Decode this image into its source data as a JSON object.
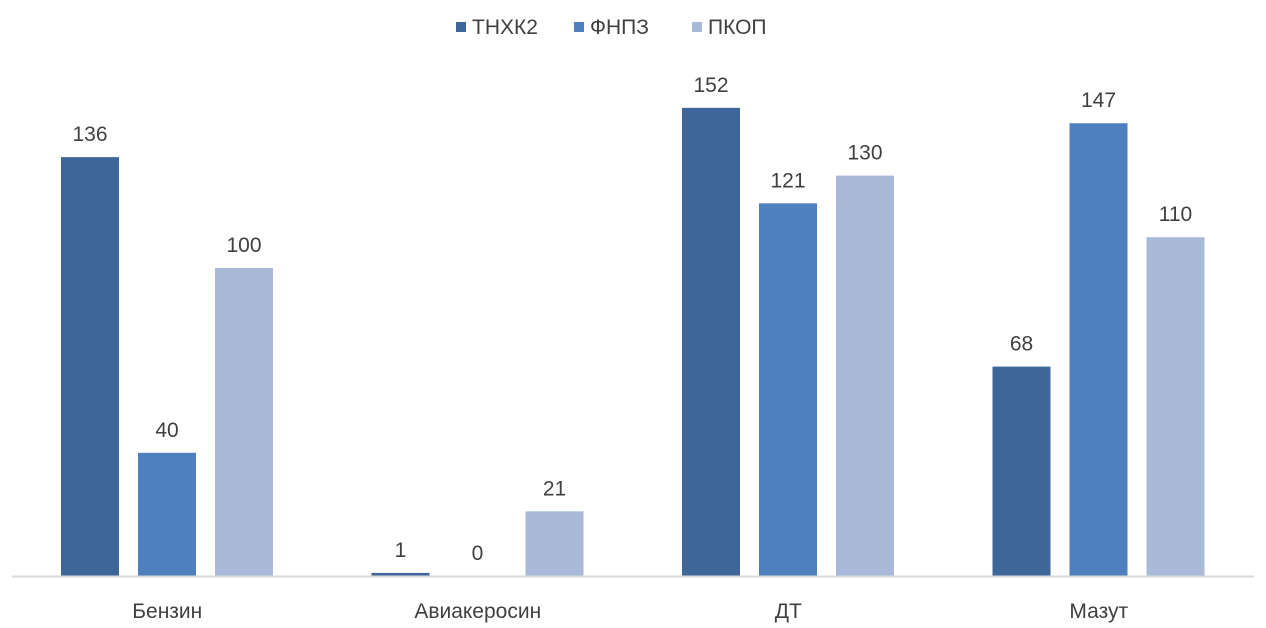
{
  "chart_data": {
    "type": "bar",
    "categories": [
      "Бензин",
      "Авиакеросин",
      "ДТ",
      "Мазут"
    ],
    "series": [
      {
        "name": "ТНХК2",
        "values": [
          136,
          1,
          152,
          68
        ]
      },
      {
        "name": "ФНПЗ",
        "values": [
          40,
          0,
          121,
          147
        ]
      },
      {
        "name": "ПКОП",
        "values": [
          100,
          21,
          130,
          110
        ]
      }
    ],
    "colors": [
      "#3e6699",
      "#4e7fbe",
      "#a9bad9"
    ],
    "ylim": [
      0,
      160
    ],
    "grid": false,
    "legend": "top-center",
    "axis_line_color": "#d9d9d9"
  }
}
